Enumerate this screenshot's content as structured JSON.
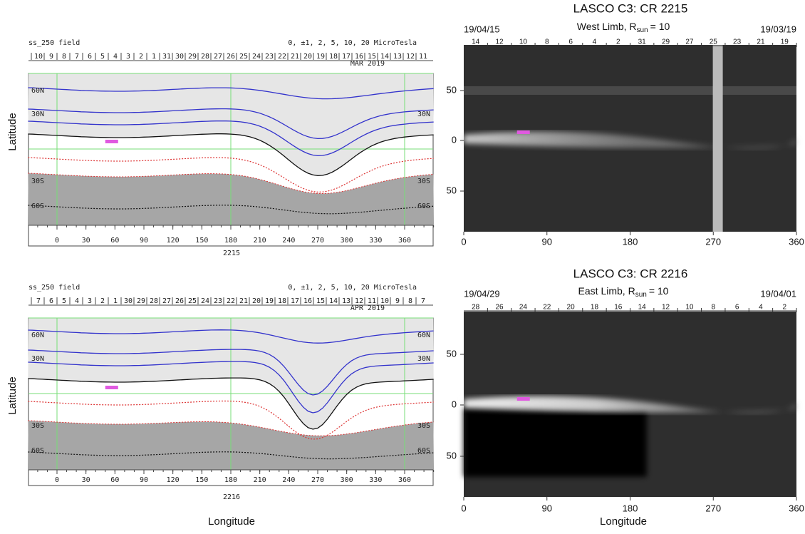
{
  "y_axis_label": "Latitude",
  "x_axis_label": "Longitude",
  "maps": [
    {
      "header_left": "ss_250 field",
      "header_right": "0, ±1, 2, 5, 10, 20 MicroTesla",
      "date_label": "MAR 2019",
      "top_ticks": [
        "10",
        "9",
        "8",
        "7",
        "6",
        "5",
        "4",
        "3",
        "2",
        "1",
        "31",
        "30",
        "29",
        "28",
        "27",
        "26",
        "25",
        "24",
        "23",
        "22",
        "21",
        "20",
        "19",
        "18",
        "17",
        "16",
        "15",
        "14",
        "13",
        "12",
        "11"
      ],
      "lat_labels_left": [
        "60N",
        "30N",
        "30S",
        "60S"
      ],
      "lat_labels_right": [
        "30N",
        "30S",
        "60S"
      ],
      "x_ticks": [
        0,
        30,
        60,
        90,
        120,
        150,
        180,
        210,
        240,
        270,
        300,
        330,
        360
      ],
      "footer": "2215"
    },
    {
      "header_left": "ss_250 field",
      "header_right": "0, ±1, 2, 5, 10, 20 MicroTesla",
      "date_label": "APR 2019",
      "top_ticks": [
        "7",
        "6",
        "5",
        "4",
        "3",
        "2",
        "1",
        "30",
        "29",
        "28",
        "27",
        "26",
        "25",
        "24",
        "23",
        "22",
        "21",
        "20",
        "19",
        "18",
        "17",
        "16",
        "15",
        "14",
        "13",
        "12",
        "11",
        "10",
        "9",
        "8",
        "7"
      ],
      "lat_labels_left": [
        "60N",
        "30N",
        "30S",
        "60S"
      ],
      "lat_labels_right": [
        "60N",
        "30N",
        "30S",
        "60S"
      ],
      "x_ticks": [
        0,
        30,
        60,
        90,
        120,
        150,
        180,
        210,
        240,
        270,
        300,
        330,
        360
      ],
      "footer": "2216"
    }
  ],
  "images": [
    {
      "title": "LASCO C3: CR 2215",
      "subtitle": {
        "text": "West Limb, R",
        "subscript": "sun",
        "suffix": "= 10"
      },
      "date_left": "19/04/15",
      "date_right": "19/03/19",
      "top_ticks": [
        "14",
        "12",
        "10",
        "8",
        "6",
        "4",
        "2",
        "31",
        "29",
        "27",
        "25",
        "23",
        "21",
        "19"
      ],
      "y_ticks": [
        50,
        0,
        50
      ],
      "x_ticks": [
        0,
        90,
        180,
        270,
        360
      ]
    },
    {
      "title": "LASCO C3: CR 2216",
      "subtitle": {
        "text": "East Limb, R",
        "subscript": "sun",
        "suffix": "= 10"
      },
      "date_left": "19/04/29",
      "date_right": "19/04/01",
      "top_ticks": [
        "28",
        "26",
        "24",
        "22",
        "20",
        "18",
        "16",
        "14",
        "12",
        "10",
        "8",
        "6",
        "4",
        "2"
      ],
      "y_ticks": [
        50,
        0,
        50
      ],
      "x_ticks": [
        0,
        90,
        180,
        270,
        360
      ]
    }
  ]
}
